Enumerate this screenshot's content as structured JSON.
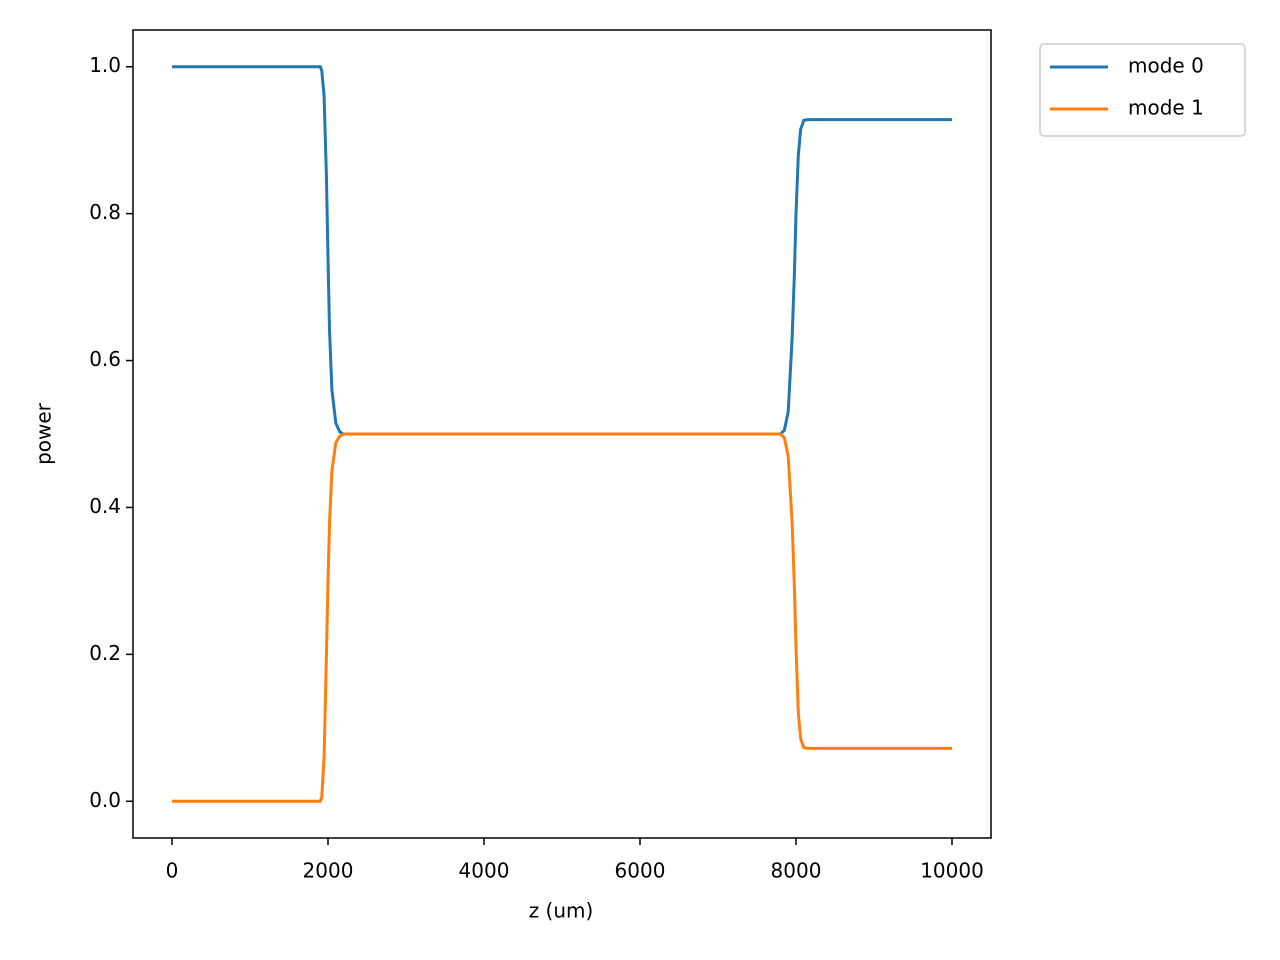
{
  "chart_data": {
    "type": "line",
    "xlabel": "z (um)",
    "ylabel": "power",
    "x": [
      0,
      1900,
      1920,
      1950,
      1980,
      2000,
      2020,
      2050,
      2100,
      2150,
      2200,
      7800,
      7850,
      7900,
      7950,
      7980,
      8000,
      8030,
      8060,
      8100,
      8150,
      10000
    ],
    "series": [
      {
        "name": "mode 0",
        "color": "#1f77b4",
        "values": [
          1,
          1,
          0.995,
          0.96,
          0.85,
          0.74,
          0.64,
          0.56,
          0.515,
          0.503,
          0.5,
          0.5,
          0.505,
          0.53,
          0.63,
          0.72,
          0.8,
          0.88,
          0.915,
          0.927,
          0.928,
          0.928
        ]
      },
      {
        "name": "mode 1",
        "color": "#ff7f0e",
        "values": [
          0,
          0,
          0.005,
          0.06,
          0.2,
          0.3,
          0.38,
          0.45,
          0.488,
          0.497,
          0.5,
          0.5,
          0.495,
          0.47,
          0.38,
          0.29,
          0.21,
          0.12,
          0.085,
          0.073,
          0.072,
          0.072
        ]
      }
    ],
    "xlim": [
      -500,
      10500
    ],
    "ylim": [
      -0.05,
      1.05
    ],
    "xticks": [
      0,
      2000,
      4000,
      6000,
      8000,
      10000
    ],
    "yticks": [
      {
        "value": 0,
        "label": "0.0"
      },
      {
        "value": 0.2,
        "label": "0.2"
      },
      {
        "value": 0.4,
        "label": "0.4"
      },
      {
        "value": 0.6,
        "label": "0.6"
      },
      {
        "value": 0.8,
        "label": "0.8"
      },
      {
        "value": 1,
        "label": "1.0"
      }
    ],
    "grid": false,
    "legend": "outside-upper-right"
  }
}
